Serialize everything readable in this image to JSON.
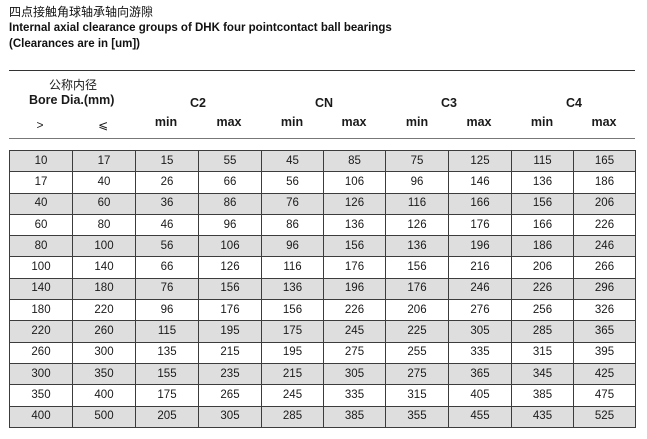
{
  "title": {
    "zh": "四点接触角球轴承轴向游隙",
    "en": "Internal axial clearance groups of DHK four pointcontact ball bearings",
    "note": "(Clearances are in [um])"
  },
  "header": {
    "bore_zh": "公称内径",
    "bore_en": "Bore Dia.(mm)",
    "gt": ">",
    "le": "⩽",
    "groups": [
      "C2",
      "CN",
      "C3",
      "C4"
    ],
    "min": "min",
    "max": "max"
  },
  "rows": [
    [
      "10",
      "17",
      "15",
      "55",
      "45",
      "85",
      "75",
      "125",
      "115",
      "165"
    ],
    [
      "17",
      "40",
      "26",
      "66",
      "56",
      "106",
      "96",
      "146",
      "136",
      "186"
    ],
    [
      "40",
      "60",
      "36",
      "86",
      "76",
      "126",
      "116",
      "166",
      "156",
      "206"
    ],
    [
      "60",
      "80",
      "46",
      "96",
      "86",
      "136",
      "126",
      "176",
      "166",
      "226"
    ],
    [
      "80",
      "100",
      "56",
      "106",
      "96",
      "156",
      "136",
      "196",
      "186",
      "246"
    ],
    [
      "100",
      "140",
      "66",
      "126",
      "116",
      "176",
      "156",
      "216",
      "206",
      "266"
    ],
    [
      "140",
      "180",
      "76",
      "156",
      "136",
      "196",
      "176",
      "246",
      "226",
      "296"
    ],
    [
      "180",
      "220",
      "96",
      "176",
      "156",
      "226",
      "206",
      "276",
      "256",
      "326"
    ],
    [
      "220",
      "260",
      "115",
      "195",
      "175",
      "245",
      "225",
      "305",
      "285",
      "365"
    ],
    [
      "260",
      "300",
      "135",
      "215",
      "195",
      "275",
      "255",
      "335",
      "315",
      "395"
    ],
    [
      "300",
      "350",
      "155",
      "235",
      "215",
      "305",
      "275",
      "365",
      "345",
      "425"
    ],
    [
      "350",
      "400",
      "175",
      "265",
      "245",
      "335",
      "315",
      "405",
      "385",
      "475"
    ],
    [
      "400",
      "500",
      "205",
      "305",
      "285",
      "385",
      "355",
      "455",
      "435",
      "525"
    ]
  ]
}
